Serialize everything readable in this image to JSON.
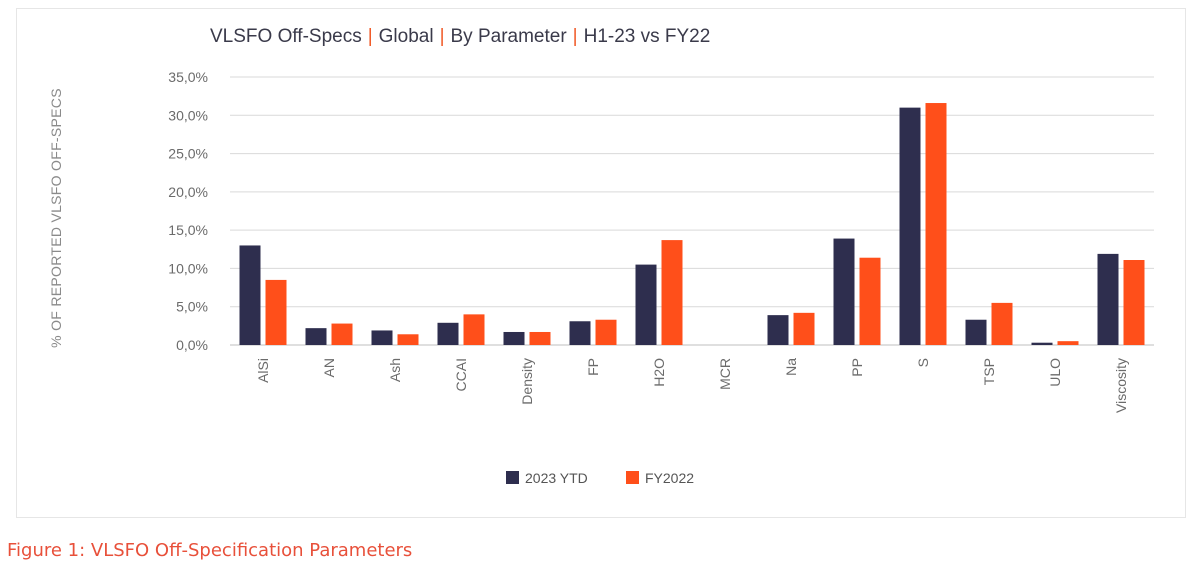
{
  "figure": {
    "caption": "Figure 1: VLSFO Off-Specification Parameters"
  },
  "chart_data": {
    "type": "bar",
    "title_parts": [
      "VLSFO  Off-Specs",
      "Global",
      "By Parameter",
      "H1-23  vs FY22"
    ],
    "title_separator": "|",
    "xlabel": "",
    "ylabel": "% OF REPORTED VLSFO OFF-SPECS",
    "ylim": [
      0,
      35
    ],
    "yticks": [
      0,
      5,
      10,
      15,
      20,
      25,
      30,
      35
    ],
    "ytick_labels": [
      "0,0%",
      "5,0%",
      "10,0%",
      "15,0%",
      "20,0%",
      "25,0%",
      "30,0%",
      "35,0%"
    ],
    "grid": "horizontal",
    "legend_position": "bottom",
    "categories": [
      "AlSi",
      "AN",
      "Ash",
      "CCAI",
      "Density",
      "FP",
      "H2O",
      "MCR",
      "Na",
      "PP",
      "S",
      "TSP",
      "ULO",
      "Viscosity"
    ],
    "series": [
      {
        "name": "2023 YTD",
        "color": "#2E2E4E",
        "values": [
          13.0,
          2.2,
          1.9,
          2.9,
          1.7,
          3.1,
          10.5,
          0,
          3.9,
          13.9,
          31.0,
          3.3,
          0.3,
          11.9
        ]
      },
      {
        "name": "FY2022",
        "color": "#FF4F1A",
        "values": [
          8.5,
          2.8,
          1.4,
          4.0,
          1.7,
          3.3,
          13.7,
          0,
          4.2,
          11.4,
          31.6,
          5.5,
          0.5,
          11.1
        ]
      }
    ]
  },
  "colors": {
    "title_separator": "#F05A28",
    "caption": "#E8503A",
    "gridline": "#d9d9d9"
  }
}
